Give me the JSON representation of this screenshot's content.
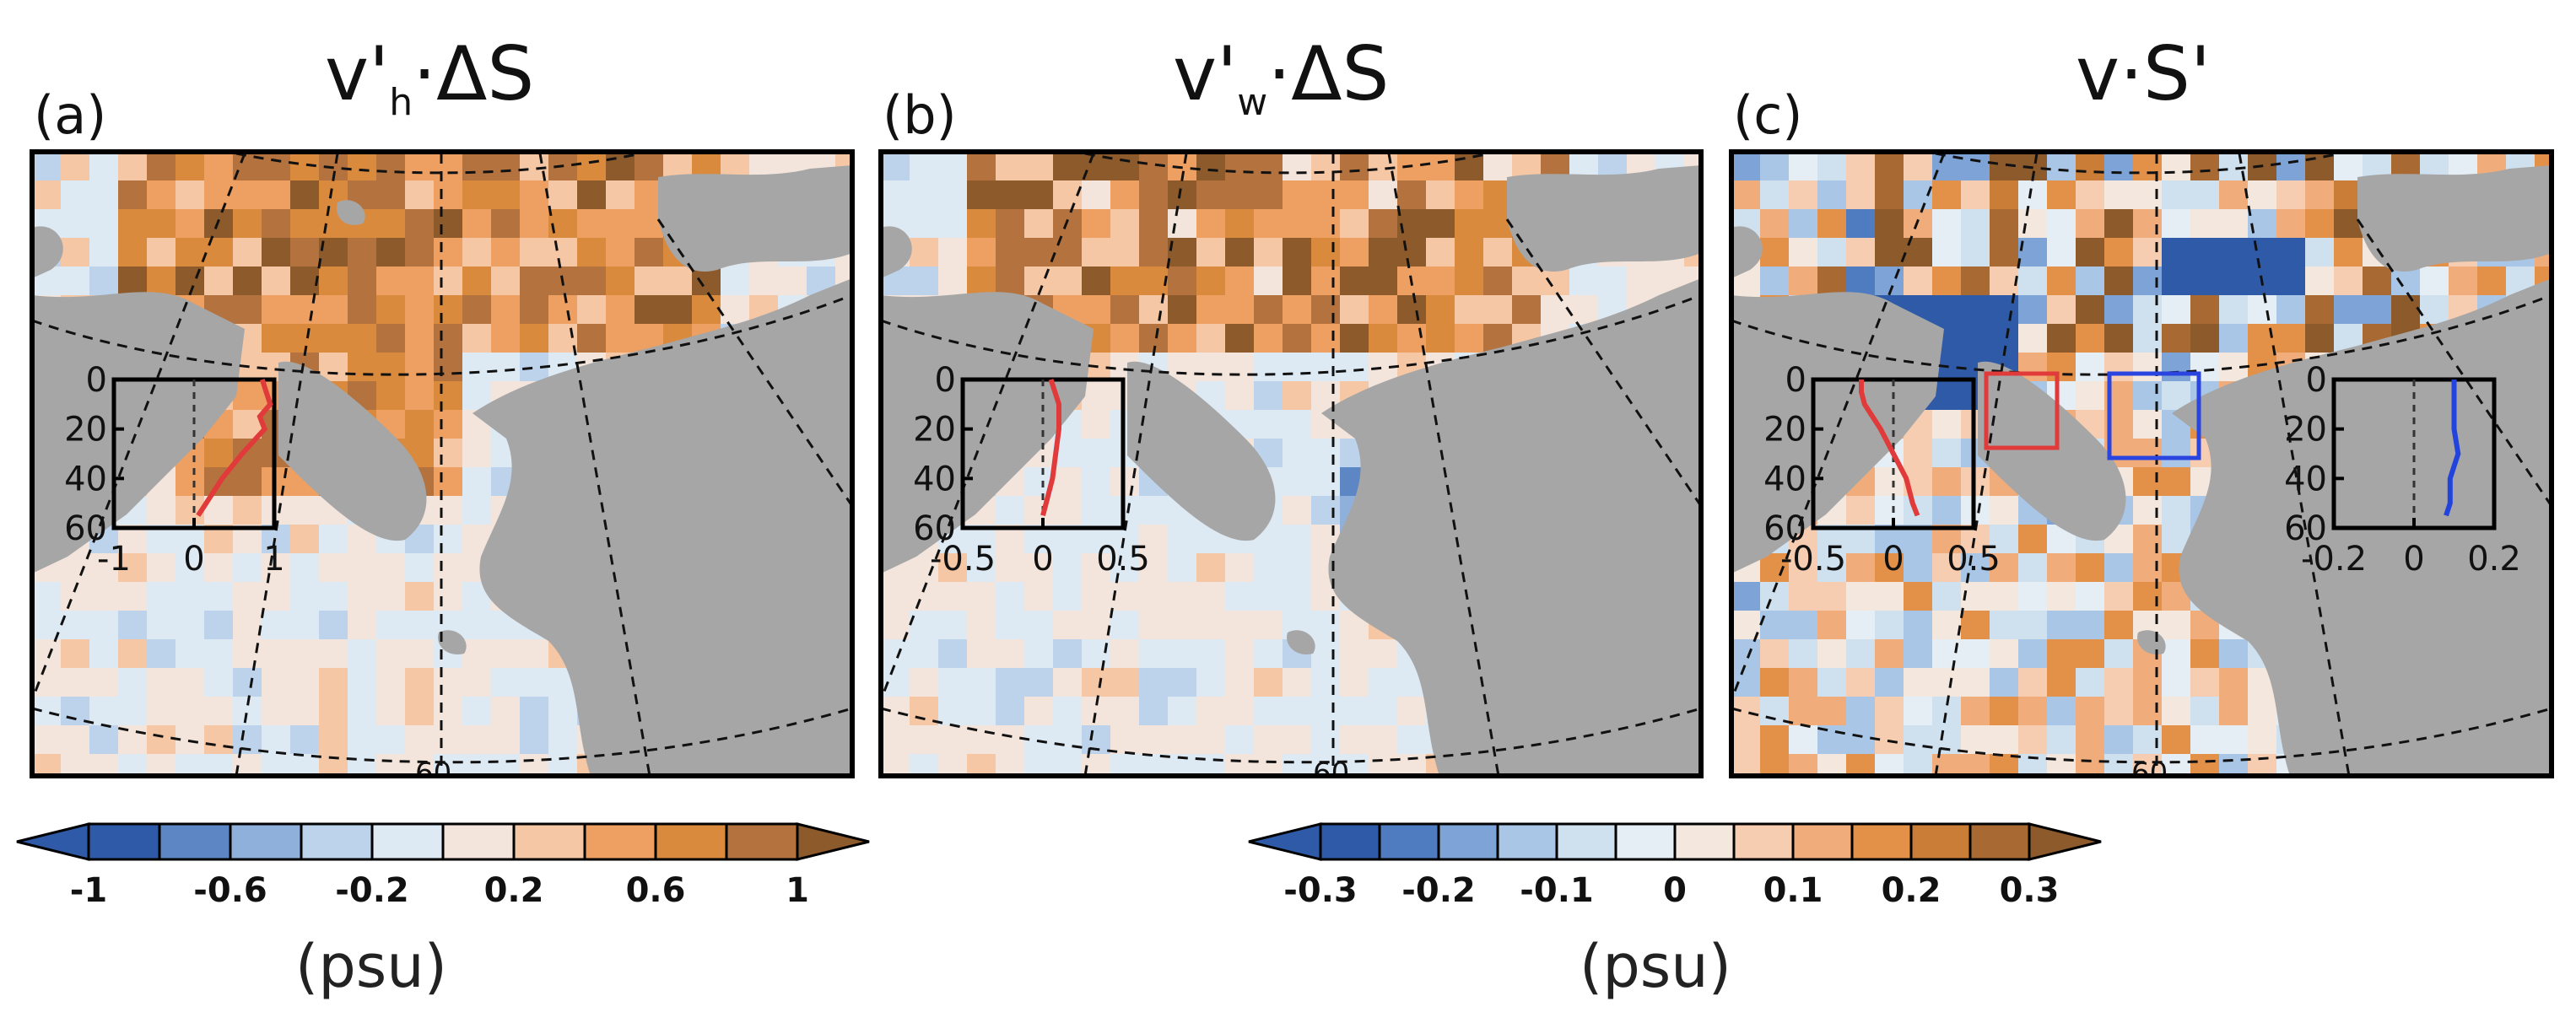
{
  "figure": {
    "panels": [
      {
        "letter": "(a)",
        "title_main": "v'",
        "title_sub": "h",
        "title_rest": "·ΔS",
        "map_label": "60",
        "inset": {
          "yticks": [
            "0",
            "20",
            "40",
            "60"
          ],
          "xticks": [
            "-1",
            "0",
            "1"
          ]
        }
      },
      {
        "letter": "(b)",
        "title_main": "v'",
        "title_sub": "w",
        "title_rest": "·ΔS",
        "map_label": "60",
        "inset": {
          "yticks": [
            "0",
            "20",
            "40",
            "60"
          ],
          "xticks": [
            "-0.5",
            "0",
            "0.5"
          ]
        }
      },
      {
        "letter": "(c)",
        "title_main": "v·S'",
        "title_sub": "",
        "title_rest": "",
        "map_label": "60",
        "inset": {
          "yticks": [
            "0",
            "20",
            "40",
            "60"
          ],
          "xticks": [
            "-0.5",
            "0",
            "0.5"
          ]
        },
        "inset2": {
          "yticks": [
            "0",
            "20",
            "40",
            "60"
          ],
          "xticks": [
            "-0.2",
            "0",
            "0.2"
          ]
        }
      }
    ],
    "colorbar_left": {
      "labels": [
        "-1",
        "-0.6",
        "-0.2",
        "0.2",
        "0.6",
        "1"
      ],
      "unit": "(psu)",
      "colors": [
        "#2f5aa8",
        "#5d86c4",
        "#8fb0da",
        "#bcd3eb",
        "#dde9f3",
        "#f3e5dc",
        "#f5c7a5",
        "#eda061",
        "#d98a3c",
        "#b4733e"
      ],
      "under_color": "#2f5aa8",
      "over_color": "#8c5a2b"
    },
    "colorbar_right": {
      "labels": [
        "-0.3",
        "-0.2",
        "-0.1",
        "0",
        "0.1",
        "0.2",
        "0.3"
      ],
      "unit": "(psu)",
      "colors": [
        "#2f5aa8",
        "#4f7bc0",
        "#7ea3d6",
        "#a9c6e6",
        "#cfe0ef",
        "#e6eef5",
        "#f3e7de",
        "#f6cdb0",
        "#f0ad7b",
        "#e39049",
        "#c97d36",
        "#a86a32"
      ],
      "under_color": "#2f5aa8",
      "over_color": "#8c5a2b"
    }
  },
  "chart_data": [
    {
      "type": "heatmap",
      "title": "v'h·ΔS",
      "panel": "(a)",
      "colorbar": "left",
      "value_range": [
        -1,
        1
      ],
      "unit": "psu",
      "inset_profile": {
        "xlim": [
          -1,
          1
        ],
        "ylim": [
          60,
          0
        ],
        "depth": [
          0,
          5,
          10,
          15,
          20,
          30,
          40,
          50,
          55
        ],
        "value": [
          0.85,
          0.9,
          0.95,
          0.82,
          0.88,
          0.6,
          0.35,
          0.15,
          0.05
        ],
        "color": "#e03a3a"
      }
    },
    {
      "type": "heatmap",
      "title": "v'w·ΔS",
      "panel": "(b)",
      "colorbar": "left",
      "value_range": [
        -1,
        1
      ],
      "unit": "psu",
      "inset_profile": {
        "xlim": [
          -0.5,
          0.5
        ],
        "ylim": [
          60,
          0
        ],
        "depth": [
          0,
          10,
          20,
          30,
          40,
          50,
          55
        ],
        "value": [
          0.05,
          0.1,
          0.1,
          0.08,
          0.06,
          0.02,
          0.0
        ],
        "color": "#e03a3a"
      }
    },
    {
      "type": "heatmap",
      "title": "v·S'",
      "panel": "(c)",
      "colorbar": "right",
      "value_range": [
        -0.3,
        0.3
      ],
      "unit": "psu",
      "inset_profile": {
        "xlim": [
          -0.5,
          0.5
        ],
        "ylim": [
          60,
          0
        ],
        "depth": [
          0,
          5,
          10,
          20,
          30,
          40,
          50,
          55
        ],
        "value": [
          -0.2,
          -0.2,
          -0.18,
          -0.08,
          0.0,
          0.08,
          0.12,
          0.15
        ],
        "color": "#e03a3a"
      },
      "inset_profile_2": {
        "xlim": [
          -0.2,
          0.2
        ],
        "ylim": [
          60,
          0
        ],
        "depth": [
          0,
          10,
          20,
          30,
          40,
          50,
          55
        ],
        "value": [
          0.1,
          0.1,
          0.1,
          0.11,
          0.09,
          0.09,
          0.08
        ],
        "color": "#2244dd"
      }
    }
  ]
}
